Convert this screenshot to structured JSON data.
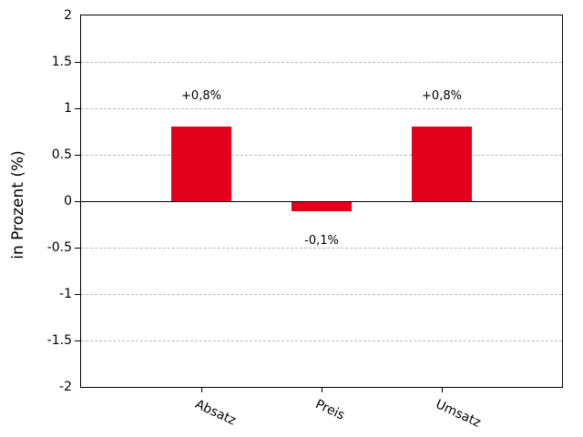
{
  "chart_data": {
    "type": "bar",
    "title": "",
    "xlabel": "",
    "ylabel": "in Prozent (%)",
    "categories": [
      "Absatz",
      "Preis",
      "Umsatz"
    ],
    "values": [
      0.8,
      -0.1,
      0.8
    ],
    "value_labels": [
      "+0,8%",
      "-0,1%",
      "+0,8%"
    ],
    "ylim": [
      -2,
      2
    ],
    "yticks": [
      {
        "value": 2,
        "label": "2",
        "grid": false,
        "tick": false
      },
      {
        "value": 1.5,
        "label": "1.5",
        "grid": true,
        "tick": true
      },
      {
        "value": 1,
        "label": "1",
        "grid": true,
        "tick": true
      },
      {
        "value": 0.5,
        "label": "0.5",
        "grid": true,
        "tick": true
      },
      {
        "value": 0,
        "label": "0",
        "grid": false,
        "tick": true
      },
      {
        "value": -0.5,
        "label": "-0.5",
        "grid": true,
        "tick": true
      },
      {
        "value": -1,
        "label": "-1",
        "grid": true,
        "tick": true
      },
      {
        "value": -1.5,
        "label": "-1.5",
        "grid": true,
        "tick": true
      },
      {
        "value": -2,
        "label": "-2",
        "grid": false,
        "tick": false
      }
    ],
    "grid": true,
    "legend": "none",
    "zero_axis": true,
    "colors": {
      "bar": "#e2001a",
      "grid": "#b8b8b8",
      "axis": "#000000",
      "text": "#000000",
      "background": "#ffffff"
    }
  }
}
